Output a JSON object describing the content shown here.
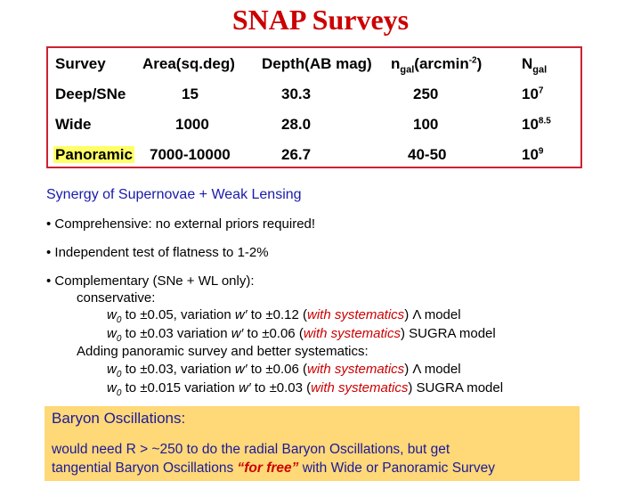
{
  "title": "SNAP Surveys",
  "table": {
    "headers": {
      "survey": "Survey",
      "area": "Area(sq.deg)",
      "depth": "Depth(AB mag)",
      "ngal_base": "n",
      "ngal_sub": "gal",
      "ngal_unit": "(arcmin",
      "ngal_exp": "-2",
      "ngal_close": ")",
      "Ngal_base": "N",
      "Ngal_sub": "gal"
    },
    "rows": [
      {
        "survey": "Deep/SNe",
        "area": "15",
        "depth": "30.3",
        "ngal": "250",
        "Ngal_base": "10",
        "Ngal_exp": "7"
      },
      {
        "survey": "Wide",
        "area": "1000",
        "depth": "28.0",
        "ngal": "100",
        "Ngal_base": "10",
        "Ngal_exp": "8.5"
      },
      {
        "survey": "Panoramic",
        "area": "7000-10000",
        "depth": "26.7",
        "ngal": "40-50",
        "Ngal_base": "10",
        "Ngal_exp": "9"
      }
    ]
  },
  "synergy_heading": "Synergy of Supernovae + Weak Lensing",
  "bullets": {
    "b1": "• Comprehensive: no external priors required!",
    "b2": "• Independent test of flatness to 1-2%",
    "b3": "• Complementary (SNe + WL only):"
  },
  "lines": {
    "conservative": "conservative:",
    "c1": {
      "w": "w",
      "w_sub": "0",
      "t1": " to ±0.05, variation ",
      "wp": "w′",
      "t2": " to ±0.12 (",
      "sys": "with systematics",
      "t3": ") Λ model"
    },
    "c2": {
      "w": "w",
      "w_sub": "0",
      "t1": " to ±0.03 variation ",
      "wp": "w′",
      "t2": " to ±0.06 (",
      "sys": "with systematics",
      "t3": ") SUGRA model"
    },
    "adding": "Adding panoramic survey and better systematics:",
    "a1": {
      "w": "w",
      "w_sub": "0",
      "t1": " to ±0.03, variation ",
      "wp": "w′",
      "t2": " to ±0.06 (",
      "sys": "with systematics",
      "t3": ") Λ model"
    },
    "a2": {
      "w": "w",
      "w_sub": "0",
      "t1": " to ±0.015 variation ",
      "wp": "w′",
      "t2": " to ±0.03 (",
      "sys": "with systematics",
      "t3": ") SUGRA model"
    }
  },
  "baryon": {
    "title": "Baryon Oscillations",
    "colon": ":",
    "line1": "would need R > ~250 to do the radial Baryon Oscillations, but get",
    "line2_pre": "tangential Baryon Oscillations ",
    "free": "“for free”",
    "line2_post": " with Wide or Panoramic Survey"
  },
  "colors": {
    "title": "#cc0000",
    "table_border": "#cc2233",
    "highlight": "#ffff66",
    "baryon_bg": "#ffd878",
    "blue_text": "#1a1aaa"
  }
}
